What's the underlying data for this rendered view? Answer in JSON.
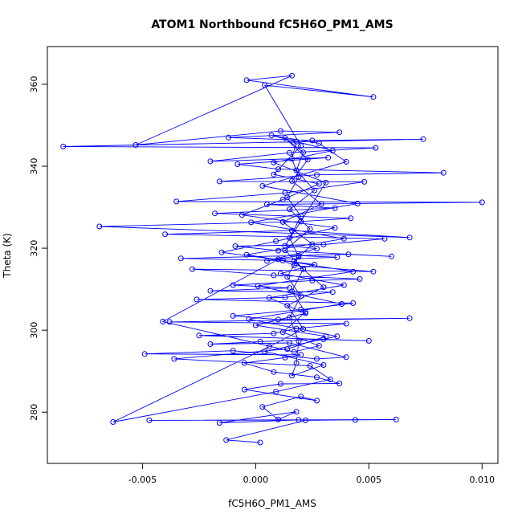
{
  "chart_data": {
    "type": "scatter",
    "title": "ATOM1 Northbound fC5H6O_PM1_AMS",
    "xlabel": "fC5H6O_PM1_AMS",
    "ylabel": "Theta (K)",
    "xlim": [
      -0.0092,
      0.0107
    ],
    "ylim": [
      267.5,
      369.2
    ],
    "x_ticks": [
      -0.005,
      0.0,
      0.005,
      0.01
    ],
    "x_tick_labels": [
      "-0.005",
      "0.000",
      "0.005",
      "0.010"
    ],
    "y_ticks": [
      280,
      300,
      320,
      340,
      360
    ],
    "y_tick_labels": [
      "280",
      "300",
      "320",
      "340",
      "360"
    ],
    "grid": false,
    "legend": "none",
    "colors": {
      "series": "#0000ff",
      "axis": "#000000"
    },
    "series": [
      {
        "connected": true,
        "points": [
          [
            0.0002,
            272.6
          ],
          [
            -0.0013,
            273.2
          ],
          [
            0.0022,
            278.0
          ],
          [
            0.0062,
            278.2
          ],
          [
            -0.0047,
            278.0
          ],
          [
            0.0044,
            278.1
          ],
          [
            0.0019,
            278.1
          ],
          [
            -0.0016,
            277.4
          ],
          [
            0.0018,
            280.1
          ],
          [
            0.001,
            278.2
          ],
          [
            0.0003,
            281.3
          ],
          [
            0.002,
            283.8
          ],
          [
            0.0027,
            282.8
          ],
          [
            -0.0005,
            285.5
          ],
          [
            0.0011,
            286.9
          ],
          [
            0.0037,
            287.0
          ],
          [
            0.0027,
            288.5
          ],
          [
            0.0008,
            289.8
          ],
          [
            -0.0005,
            292.0
          ],
          [
            0.0013,
            293.3
          ],
          [
            0.002,
            294.0
          ],
          [
            -0.0049,
            294.2
          ],
          [
            -0.001,
            295.0
          ],
          [
            0.0027,
            293.0
          ],
          [
            0.004,
            293.4
          ],
          [
            0.0015,
            296.9
          ],
          [
            -0.002,
            296.6
          ],
          [
            0.0002,
            297.2
          ],
          [
            0.003,
            297.8
          ],
          [
            0.005,
            297.4
          ],
          [
            -0.0025,
            298.7
          ],
          [
            0.0008,
            299.2
          ],
          [
            0.0018,
            300.4
          ],
          [
            0.004,
            301.6
          ],
          [
            -0.0038,
            302.0
          ],
          [
            0.0068,
            302.9
          ],
          [
            0.001,
            302.6
          ],
          [
            -0.001,
            303.5
          ],
          [
            0.002,
            305.0
          ],
          [
            0.0043,
            306.6
          ],
          [
            -0.0026,
            307.5
          ],
          [
            0.0013,
            308.0
          ],
          [
            0.0034,
            309.3
          ],
          [
            -0.002,
            309.6
          ],
          [
            0.0015,
            310.3
          ],
          [
            -0.001,
            311.0
          ],
          [
            0.0025,
            312.1
          ],
          [
            0.0046,
            312.5
          ],
          [
            0.0008,
            313.4
          ],
          [
            -0.0028,
            314.9
          ],
          [
            0.0052,
            314.3
          ],
          [
            0.0017,
            315.8
          ],
          [
            0.0012,
            317.0
          ],
          [
            -0.0033,
            317.5
          ],
          [
            0.0041,
            318.5
          ],
          [
            0.006,
            318.0
          ],
          [
            0.001,
            319.4
          ],
          [
            -0.0009,
            320.5
          ],
          [
            0.003,
            320.9
          ],
          [
            0.0057,
            322.3
          ],
          [
            -0.004,
            323.4
          ],
          [
            0.0016,
            324.3
          ],
          [
            0.0068,
            322.6
          ],
          [
            -0.0069,
            325.3
          ],
          [
            0.002,
            326.5
          ],
          [
            0.0042,
            327.3
          ],
          [
            -0.0018,
            328.5
          ],
          [
            0.0035,
            329.8
          ],
          [
            0.0005,
            330.7
          ],
          [
            0.01,
            331.2
          ],
          [
            -0.0035,
            331.4
          ],
          [
            0.0013,
            333.5
          ],
          [
            0.0048,
            336.2
          ],
          [
            -0.0016,
            336.3
          ],
          [
            0.0027,
            337.9
          ],
          [
            0.0083,
            338.4
          ],
          [
            0.001,
            339.3
          ],
          [
            -0.0008,
            340.5
          ],
          [
            0.0032,
            342.1
          ],
          [
            -0.002,
            341.2
          ],
          [
            0.0015,
            343.3
          ],
          [
            0.0053,
            344.5
          ],
          [
            -0.0085,
            344.8
          ],
          [
            0.0074,
            346.6
          ],
          [
            0.0025,
            346.3
          ],
          [
            -0.0012,
            347.0
          ],
          [
            0.0037,
            348.3
          ],
          [
            0.0011,
            348.6
          ],
          [
            -0.0053,
            345.2
          ],
          [
            0.0016,
            362.1
          ],
          [
            -0.0004,
            361.0
          ],
          [
            0.0052,
            356.9
          ],
          [
            0.0004,
            359.8
          ],
          [
            0.002,
            345.0
          ],
          [
            0.0008,
            338.0
          ],
          [
            0.0028,
            335.7
          ],
          [
            0.0012,
            331.9
          ],
          [
            -0.0006,
            328.1
          ],
          [
            0.0035,
            325.0
          ],
          [
            0.0009,
            321.7
          ],
          [
            -0.0015,
            319.0
          ],
          [
            0.0026,
            316.0
          ],
          [
            0.0011,
            313.8
          ],
          [
            0.0039,
            311.0
          ],
          [
            0.0006,
            307.9
          ],
          [
            0.0022,
            304.1
          ],
          [
            0.0,
            301.2
          ],
          [
            0.0031,
            298.5
          ],
          [
            0.0014,
            295.4
          ],
          [
            -0.0036,
            293.0
          ],
          [
            0.0024,
            291.3
          ],
          [
            0.0033,
            288.0
          ],
          [
            0.0009,
            285.0
          ],
          [
            -0.0063,
            277.6
          ],
          [
            0.0006,
            296.0
          ],
          [
            0.0021,
            300.3
          ],
          [
            0.0014,
            306.0
          ],
          [
            0.003,
            310.5
          ],
          [
            0.0017,
            316.8
          ],
          [
            0.0025,
            321.0
          ],
          [
            0.0012,
            326.4
          ],
          [
            0.0029,
            330.8
          ],
          [
            0.0016,
            336.4
          ],
          [
            0.0023,
            341.6
          ],
          [
            0.0013,
            346.9
          ],
          [
            0.0021,
            343.4
          ],
          [
            0.0018,
            339.0
          ],
          [
            0.0026,
            334.1
          ],
          [
            0.0015,
            329.5
          ],
          [
            0.0024,
            324.7
          ],
          [
            0.0013,
            319.5
          ],
          [
            0.0021,
            314.9
          ],
          [
            0.0016,
            309.5
          ],
          [
            0.0022,
            304.4
          ],
          [
            0.0012,
            299.5
          ],
          [
            0.0028,
            296.2
          ],
          [
            0.0017,
            294.7
          ],
          [
            -0.0041,
            302.1
          ],
          [
            0.001,
            317.3
          ],
          [
            0.0036,
            317.8
          ],
          [
            0.0019,
            318.2
          ],
          [
            0.0005,
            316.9
          ],
          [
            0.0027,
            319.9
          ],
          [
            0.0013,
            320.6
          ],
          [
            0.0031,
            336.0
          ],
          [
            0.0008,
            340.9
          ],
          [
            0.0034,
            343.8
          ],
          [
            0.0007,
            347.5
          ],
          [
            0.0028,
            345.6
          ],
          [
            0.004,
            341.1
          ],
          [
            0.0003,
            335.2
          ],
          [
            0.0045,
            330.9
          ],
          [
            -0.0002,
            326.3
          ],
          [
            0.0039,
            322.3
          ],
          [
            -0.0004,
            318.4
          ],
          [
            0.0043,
            314.3
          ],
          [
            0.0001,
            310.8
          ],
          [
            0.0038,
            306.4
          ],
          [
            -0.0003,
            302.7
          ],
          [
            0.0036,
            298.5
          ],
          [
            0.0004,
            294.8
          ],
          [
            0.003,
            291.5
          ],
          [
            0.0016,
            288.9
          ],
          [
            0.0018,
            292.0
          ],
          [
            0.0019,
            297.3
          ],
          [
            0.0015,
            303.1
          ],
          [
            0.002,
            308.3
          ],
          [
            0.0014,
            313.0
          ],
          [
            0.0019,
            317.9
          ],
          [
            0.0015,
            322.5
          ],
          [
            0.002,
            327.8
          ],
          [
            0.0014,
            332.4
          ],
          [
            0.0019,
            337.4
          ],
          [
            0.0016,
            341.8
          ],
          [
            0.0018,
            346.0
          ]
        ]
      }
    ]
  }
}
